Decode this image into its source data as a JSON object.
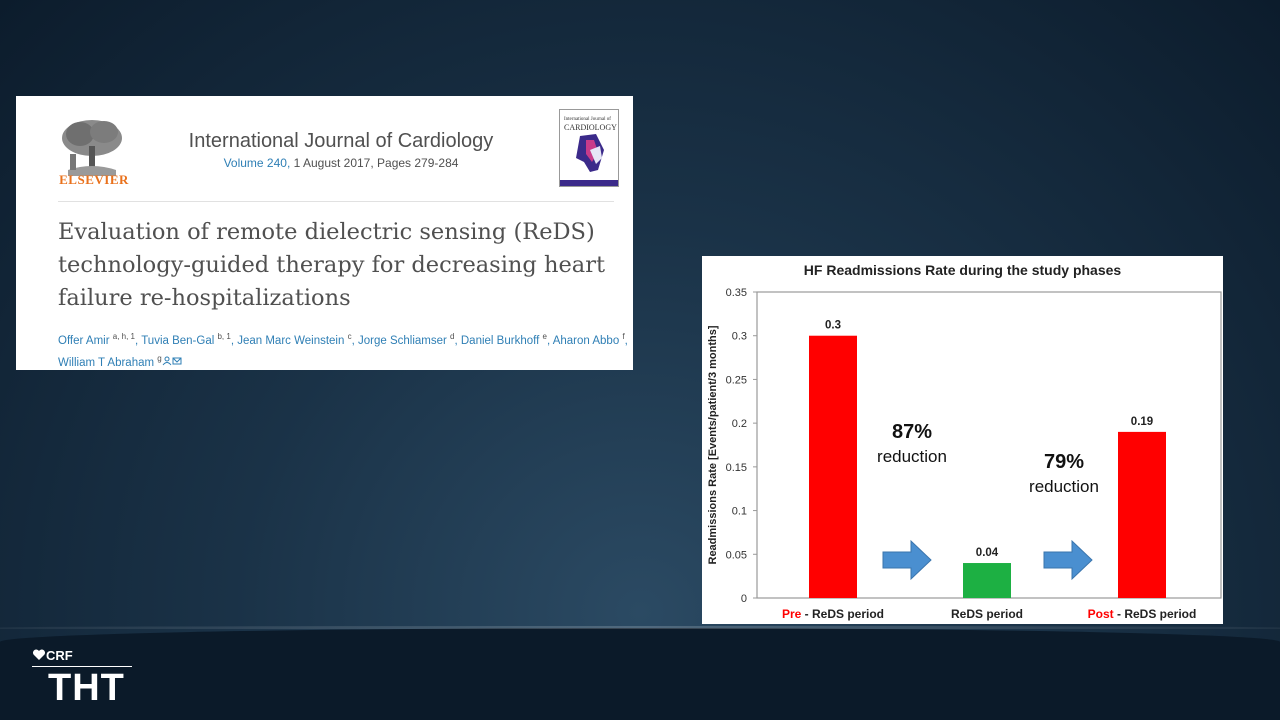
{
  "article": {
    "publisher": "ELSEVIER",
    "journal_name": "International Journal of Cardiology",
    "volume": "Volume 240,",
    "date_pages": " 1 August 2017, Pages 279-284",
    "cover_title": "CARDIOLOGY",
    "title": "Evaluation of remote dielectric sensing (ReDS) technology-guided therapy for decreasing heart failure re-hospitalizations",
    "authors": [
      {
        "name": "Offer Amir",
        "sup": "a, h, 1"
      },
      {
        "name": "Tuvia Ben-Gal",
        "sup": "b, 1"
      },
      {
        "name": "Jean Marc Weinstein",
        "sup": "c"
      },
      {
        "name": "Jorge Schliamser",
        "sup": "d"
      },
      {
        "name": "Daniel Burkhoff",
        "sup": "e"
      },
      {
        "name": "Aharon Abbo",
        "sup": "f"
      },
      {
        "name": "William T Abraham",
        "sup": "g"
      }
    ]
  },
  "chart_data": {
    "type": "bar",
    "title": "HF Readmissions Rate during the study phases",
    "ylabel": "Readmissions Rate [Events/patient/3 months]",
    "ylim": [
      0,
      0.35
    ],
    "yticks": [
      "0",
      "0.05",
      "0.1",
      "0.15",
      "0.2",
      "0.25",
      "0.3",
      "0.35"
    ],
    "ytick_values": [
      0,
      0.05,
      0.1,
      0.15,
      0.2,
      0.25,
      0.3,
      0.35
    ],
    "categories": [
      {
        "prefix": "Pre",
        "rest": " - ReDS period"
      },
      {
        "prefix": "",
        "rest": "ReDS  period"
      },
      {
        "prefix": "Post",
        "rest": " - ReDS period"
      }
    ],
    "values": [
      0.3,
      0.04,
      0.19
    ],
    "data_labels": [
      "0.3",
      "0.04",
      "0.19"
    ],
    "colors": [
      "#ff0000",
      "#1db043",
      "#ff0000"
    ],
    "annotations": [
      {
        "pct": "87%",
        "text": "reduction"
      },
      {
        "pct": "79%",
        "text": "reduction"
      }
    ],
    "arrow_color": "#4a8fd0",
    "grid": false
  },
  "logo": {
    "crf": "CRF",
    "tht": "THT"
  }
}
